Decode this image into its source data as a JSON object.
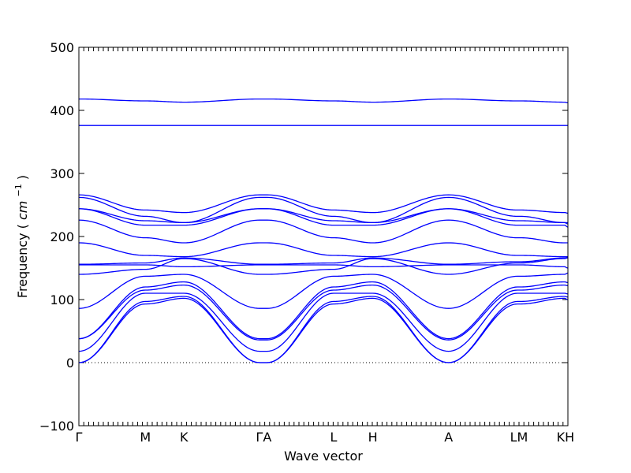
{
  "chart_data": {
    "type": "line",
    "title": "",
    "xlabel": "Wave vector",
    "ylabel": "Frequency",
    "ylabel_unit": "cm",
    "ylabel_unit_exp": "−1",
    "ylim": [
      -100,
      500
    ],
    "yticks": [
      -100,
      0,
      100,
      200,
      300,
      400,
      500
    ],
    "xlim": [
      0,
      100
    ],
    "xticks": [
      {
        "label": "Γ",
        "x": 0
      },
      {
        "label": "M",
        "x": 13.6
      },
      {
        "label": "K",
        "x": 21.5
      },
      {
        "label": "ΓA",
        "x": 37.8
      },
      {
        "label": "L",
        "x": 52.1
      },
      {
        "label": "H",
        "x": 60.1
      },
      {
        "label": "A",
        "x": 75.6
      },
      {
        "label": "LM",
        "x": 90.0
      },
      {
        "label": "KH",
        "x": 99.5
      }
    ],
    "zero_line": 0,
    "band_color": "#0000ff",
    "path_nodes_x": [
      0,
      13.6,
      21.5,
      37.0,
      38.5,
      52.1,
      60.1,
      75.6,
      89.7,
      90.3,
      99.3,
      100
    ],
    "series": [
      {
        "values": [
          0,
          93,
          102,
          0,
          0,
          93,
          102,
          0,
          93,
          93,
          102,
          100
        ]
      },
      {
        "values": [
          0,
          97,
          105,
          0,
          0,
          97,
          105,
          0,
          97,
          97,
          105,
          104
        ]
      },
      {
        "values": [
          18,
          110,
          110,
          18,
          18,
          110,
          110,
          18,
          110,
          110,
          110,
          109
        ]
      },
      {
        "values": [
          38,
          115,
          123,
          36,
          36,
          115,
          123,
          36,
          115,
          115,
          123,
          122
        ]
      },
      {
        "values": [
          38,
          120,
          128,
          38,
          38,
          120,
          128,
          38,
          120,
          120,
          128,
          127
        ]
      },
      {
        "values": [
          86,
          137,
          140,
          86,
          86,
          137,
          140,
          86,
          137,
          137,
          140,
          142
        ]
      },
      {
        "values": [
          140,
          148,
          165,
          140,
          140,
          148,
          165,
          140,
          158,
          158,
          165,
          166
        ]
      },
      {
        "values": [
          155,
          155,
          152,
          155,
          155,
          155,
          152,
          155,
          155,
          155,
          152,
          150
        ]
      },
      {
        "values": [
          156,
          158,
          166,
          156,
          156,
          158,
          166,
          156,
          160,
          160,
          166,
          167
        ]
      },
      {
        "values": [
          190,
          170,
          168,
          190,
          190,
          170,
          168,
          190,
          170,
          170,
          168,
          168
        ]
      },
      {
        "values": [
          226,
          198,
          190,
          226,
          226,
          198,
          190,
          226,
          198,
          198,
          190,
          190
        ]
      },
      {
        "values": [
          244,
          218,
          218,
          244,
          244,
          218,
          218,
          244,
          218,
          218,
          218,
          215
        ]
      },
      {
        "values": [
          244,
          225,
          222,
          244,
          244,
          225,
          222,
          244,
          225,
          225,
          222,
          220
        ]
      },
      {
        "values": [
          262,
          232,
          222,
          262,
          262,
          232,
          222,
          262,
          232,
          232,
          222,
          222
        ]
      },
      {
        "values": [
          266,
          242,
          238,
          266,
          266,
          242,
          238,
          266,
          242,
          242,
          238,
          237
        ]
      },
      {
        "values": [
          376,
          376,
          376,
          376,
          376,
          376,
          376,
          376,
          376,
          376,
          376,
          376
        ]
      },
      {
        "values": [
          418,
          415,
          413,
          418,
          418,
          415,
          413,
          418,
          415,
          415,
          413,
          412
        ]
      }
    ]
  }
}
